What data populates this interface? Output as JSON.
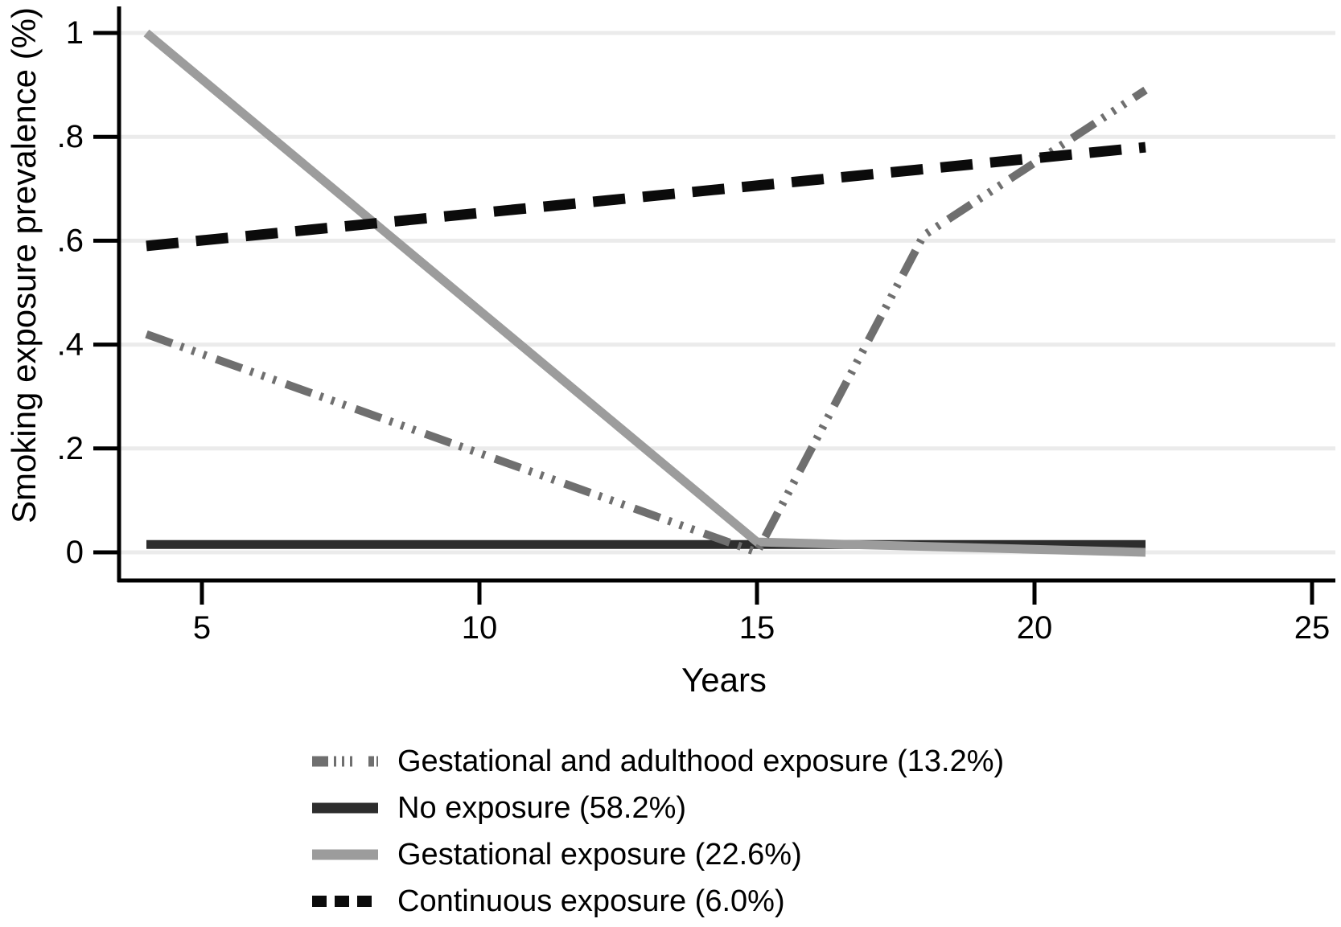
{
  "chart_data": {
    "type": "line",
    "title": "",
    "xlabel": "Years",
    "ylabel": "Smoking exposure prevalence (%)",
    "xlim": [
      3.5,
      25.5
    ],
    "ylim": [
      -0.05,
      1.05
    ],
    "xticks": [
      5,
      10,
      15,
      20,
      25
    ],
    "xtick_labels": [
      "5",
      "10",
      "15",
      "20",
      "25"
    ],
    "yticks": [
      0,
      0.2,
      0.4,
      0.6,
      0.8,
      1
    ],
    "ytick_labels": [
      "0",
      ".2",
      ".4",
      ".6",
      ".8",
      "1"
    ],
    "grid": "horizontal",
    "gridline_color": "#ebebeb",
    "axis_color": "#000000",
    "legend_position": "bottom-left",
    "series": [
      {
        "name": "Gestational and adulthood exposure (13.2%)",
        "style": "dash-dot",
        "color": "#6f6f6f",
        "points": [
          [
            4,
            0.42
          ],
          [
            15,
            0.0
          ],
          [
            18,
            0.61
          ],
          [
            22,
            0.89
          ]
        ]
      },
      {
        "name": "No exposure (58.2%)",
        "style": "solid",
        "color": "#2d2d2d",
        "points": [
          [
            4,
            0.015
          ],
          [
            22,
            0.015
          ]
        ]
      },
      {
        "name": "Gestational exposure (22.6%)",
        "style": "solid",
        "color": "#9c9c9c",
        "points": [
          [
            4,
            1.0
          ],
          [
            15,
            0.02
          ],
          [
            22,
            0.0
          ]
        ]
      },
      {
        "name": "Continuous exposure (6.0%)",
        "style": "dashed",
        "color": "#0b0b0b",
        "points": [
          [
            4,
            0.59
          ],
          [
            22,
            0.78
          ]
        ]
      }
    ]
  }
}
